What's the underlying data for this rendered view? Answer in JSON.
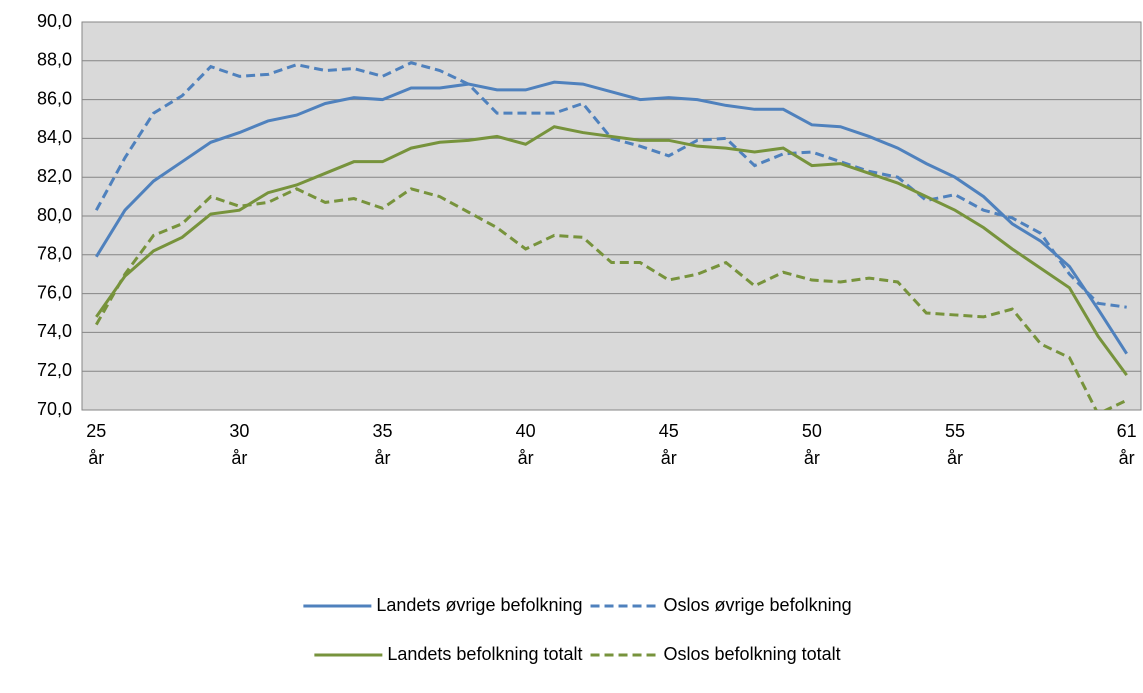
{
  "chart_data": {
    "type": "line",
    "categories": [
      "25 år",
      null,
      null,
      null,
      null,
      "30 år",
      null,
      null,
      null,
      null,
      "35 år",
      null,
      null,
      null,
      null,
      "40 år",
      null,
      null,
      null,
      null,
      "45 år",
      null,
      null,
      null,
      null,
      "50 år",
      null,
      null,
      null,
      null,
      "55 år",
      null,
      null,
      null,
      null,
      null,
      "61 år"
    ],
    "ylim": [
      70,
      90
    ],
    "yticks": [
      {
        "value": 70,
        "label": "70,0"
      },
      {
        "value": 72,
        "label": "72,0"
      },
      {
        "value": 74,
        "label": "74,0"
      },
      {
        "value": 76,
        "label": "76,0"
      },
      {
        "value": 78,
        "label": "78,0"
      },
      {
        "value": 80,
        "label": "80,0"
      },
      {
        "value": 82,
        "label": "82,0"
      },
      {
        "value": 84,
        "label": "84,0"
      },
      {
        "value": 86,
        "label": "86,0"
      },
      {
        "value": 88,
        "label": "88,0"
      },
      {
        "value": 90,
        "label": "90,0"
      }
    ],
    "grid": true,
    "legend": "bottom",
    "series": [
      {
        "name": "Landets øvrige befolkning",
        "color": "#4f81bd",
        "dashed": false,
        "values": [
          77.9,
          80.3,
          81.8,
          82.8,
          83.8,
          84.3,
          84.9,
          85.2,
          85.8,
          86.1,
          86.0,
          86.6,
          86.6,
          86.8,
          86.5,
          86.5,
          86.9,
          86.8,
          86.4,
          86.0,
          86.1,
          86.0,
          85.7,
          85.5,
          85.5,
          84.7,
          84.6,
          84.1,
          83.5,
          82.7,
          82.0,
          81.0,
          79.6,
          78.7,
          77.4,
          75.2,
          72.9
        ]
      },
      {
        "name": "Oslos øvrige befolkning",
        "color": "#4f81bd",
        "dashed": true,
        "values": [
          80.3,
          83.0,
          85.3,
          86.2,
          87.7,
          87.2,
          87.3,
          87.8,
          87.5,
          87.6,
          87.2,
          87.9,
          87.5,
          86.8,
          85.3,
          85.3,
          85.3,
          85.8,
          84.0,
          83.6,
          83.1,
          83.9,
          84.0,
          82.6,
          83.2,
          83.3,
          82.8,
          82.3,
          82.0,
          80.8,
          81.1,
          80.3,
          79.9,
          79.1,
          77.0,
          75.5,
          75.3
        ]
      },
      {
        "name": "Landets befolkning totalt",
        "color": "#77933c",
        "dashed": false,
        "values": [
          74.8,
          76.9,
          78.2,
          78.9,
          80.1,
          80.3,
          81.2,
          81.6,
          82.2,
          82.8,
          82.8,
          83.5,
          83.8,
          83.9,
          84.1,
          83.7,
          84.6,
          84.3,
          84.1,
          83.9,
          83.9,
          83.6,
          83.5,
          83.3,
          83.5,
          82.6,
          82.7,
          82.2,
          81.7,
          81.0,
          80.3,
          79.4,
          78.3,
          77.3,
          76.3,
          73.8,
          71.8
        ]
      },
      {
        "name": "Oslos befolkning totalt",
        "color": "#77933c",
        "dashed": true,
        "values": [
          74.4,
          77.0,
          79.0,
          79.6,
          81.0,
          80.5,
          80.7,
          81.4,
          80.7,
          80.9,
          80.4,
          81.4,
          81.0,
          80.2,
          79.4,
          78.3,
          79.0,
          78.9,
          77.6,
          77.6,
          76.7,
          77.0,
          77.6,
          76.4,
          77.1,
          76.7,
          76.6,
          76.8,
          76.6,
          75.0,
          74.9,
          74.8,
          75.2,
          73.4,
          72.7,
          69.8,
          70.5
        ]
      }
    ]
  }
}
